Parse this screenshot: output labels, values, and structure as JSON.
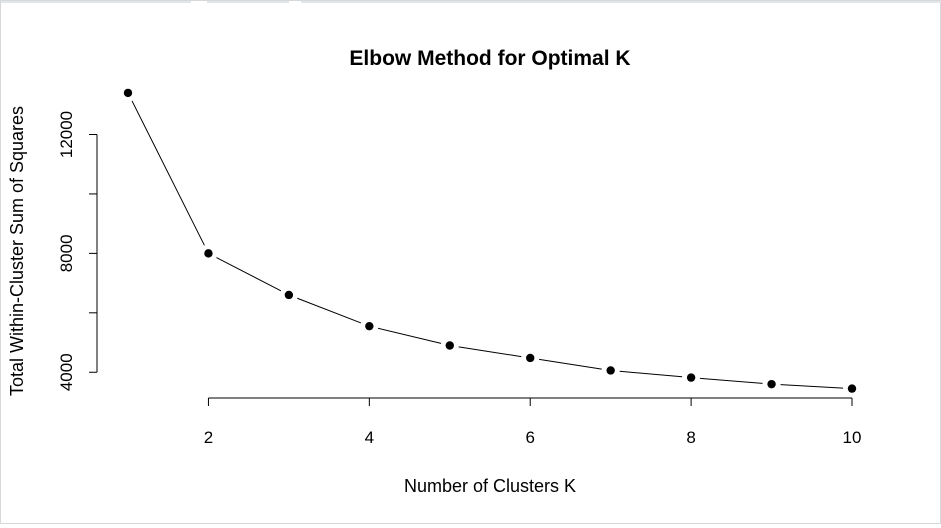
{
  "chart_data": {
    "type": "line",
    "title": "Elbow Method for Optimal K",
    "xlabel": "Number of Clusters K",
    "ylabel": "Total Within-Cluster Sum of Squares",
    "x": [
      1,
      2,
      3,
      4,
      5,
      6,
      7,
      8,
      9,
      10
    ],
    "series": [
      {
        "values": [
          13400,
          8000,
          6600,
          5550,
          4900,
          4480,
          4060,
          3820,
          3600,
          3450
        ]
      }
    ],
    "xlim": [
      1,
      10
    ],
    "ylim": [
      3100,
      13800
    ],
    "x_ticks": [
      2,
      4,
      6,
      8,
      10
    ],
    "x_tick_labels": [
      "2",
      "4",
      "6",
      "8",
      "10"
    ],
    "y_ticks": [
      4000,
      6000,
      8000,
      10000,
      12000
    ],
    "y_tick_labels": [
      "4000",
      "",
      "8000",
      "",
      "12000"
    ],
    "grid": false,
    "legend": "none",
    "line_color": "#000000",
    "marker": "filled-circle"
  }
}
